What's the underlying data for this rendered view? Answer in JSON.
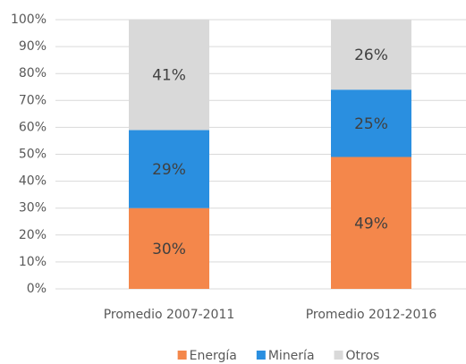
{
  "chart_data": {
    "type": "bar",
    "stacked": true,
    "categories": [
      "Promedio 2007-2011",
      "Promedio 2012-2016"
    ],
    "series": [
      {
        "name": "Energía",
        "color": "#f4874b",
        "values": [
          30,
          49
        ],
        "value_labels": [
          "30%",
          "49%"
        ]
      },
      {
        "name": "Minería",
        "color": "#2a8fe0",
        "values": [
          29,
          25
        ],
        "value_labels": [
          "29%",
          "25%"
        ]
      },
      {
        "name": "Otros",
        "color": "#d9d9d9",
        "values": [
          41,
          26
        ],
        "value_labels": [
          "41%",
          "26%"
        ]
      }
    ],
    "ylim": [
      0,
      100
    ],
    "yticks": [
      {
        "value": 0,
        "label": "0%"
      },
      {
        "value": 10,
        "label": "10%"
      },
      {
        "value": 20,
        "label": "20%"
      },
      {
        "value": 30,
        "label": "30%"
      },
      {
        "value": 40,
        "label": "40%"
      },
      {
        "value": 50,
        "label": "50%"
      },
      {
        "value": 60,
        "label": "60%"
      },
      {
        "value": 70,
        "label": "70%"
      },
      {
        "value": 80,
        "label": "80%"
      },
      {
        "value": 90,
        "label": "90%"
      },
      {
        "value": 100,
        "label": "100%"
      }
    ],
    "grid": true,
    "legend": "bottom"
  }
}
